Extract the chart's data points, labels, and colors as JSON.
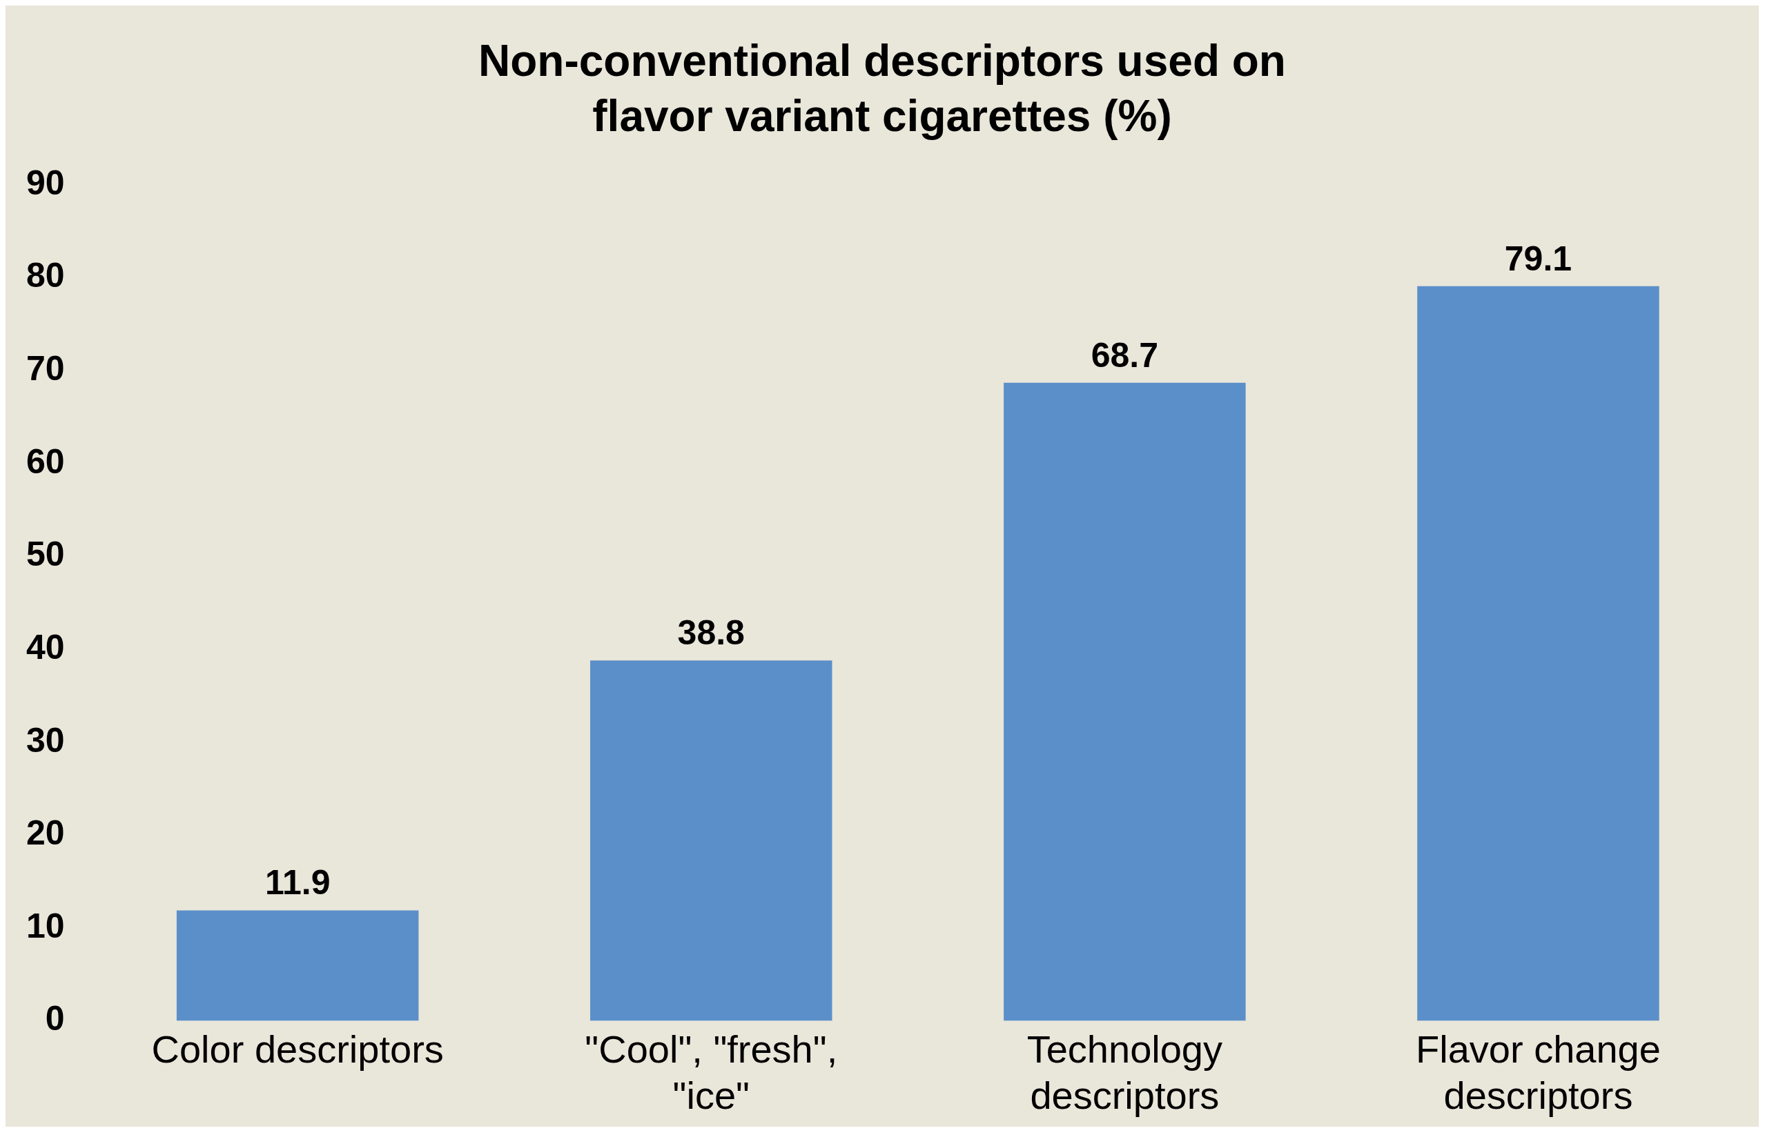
{
  "chart_data": {
    "type": "bar",
    "title": "Non-conventional descriptors used on flavor variant cigarettes (%)",
    "categories": [
      "Color descriptors",
      "\"Cool\", \"fresh\", \"ice\"",
      "Technology descriptors",
      "Flavor change descriptors"
    ],
    "values": [
      11.9,
      38.8,
      68.7,
      79.1
    ],
    "color": "#5b8fc9",
    "ylim": [
      0,
      90
    ],
    "yticks": [
      0,
      10,
      20,
      30,
      40,
      50,
      60,
      70,
      80,
      90
    ],
    "grid": false,
    "legend": false,
    "data_labels": true
  }
}
